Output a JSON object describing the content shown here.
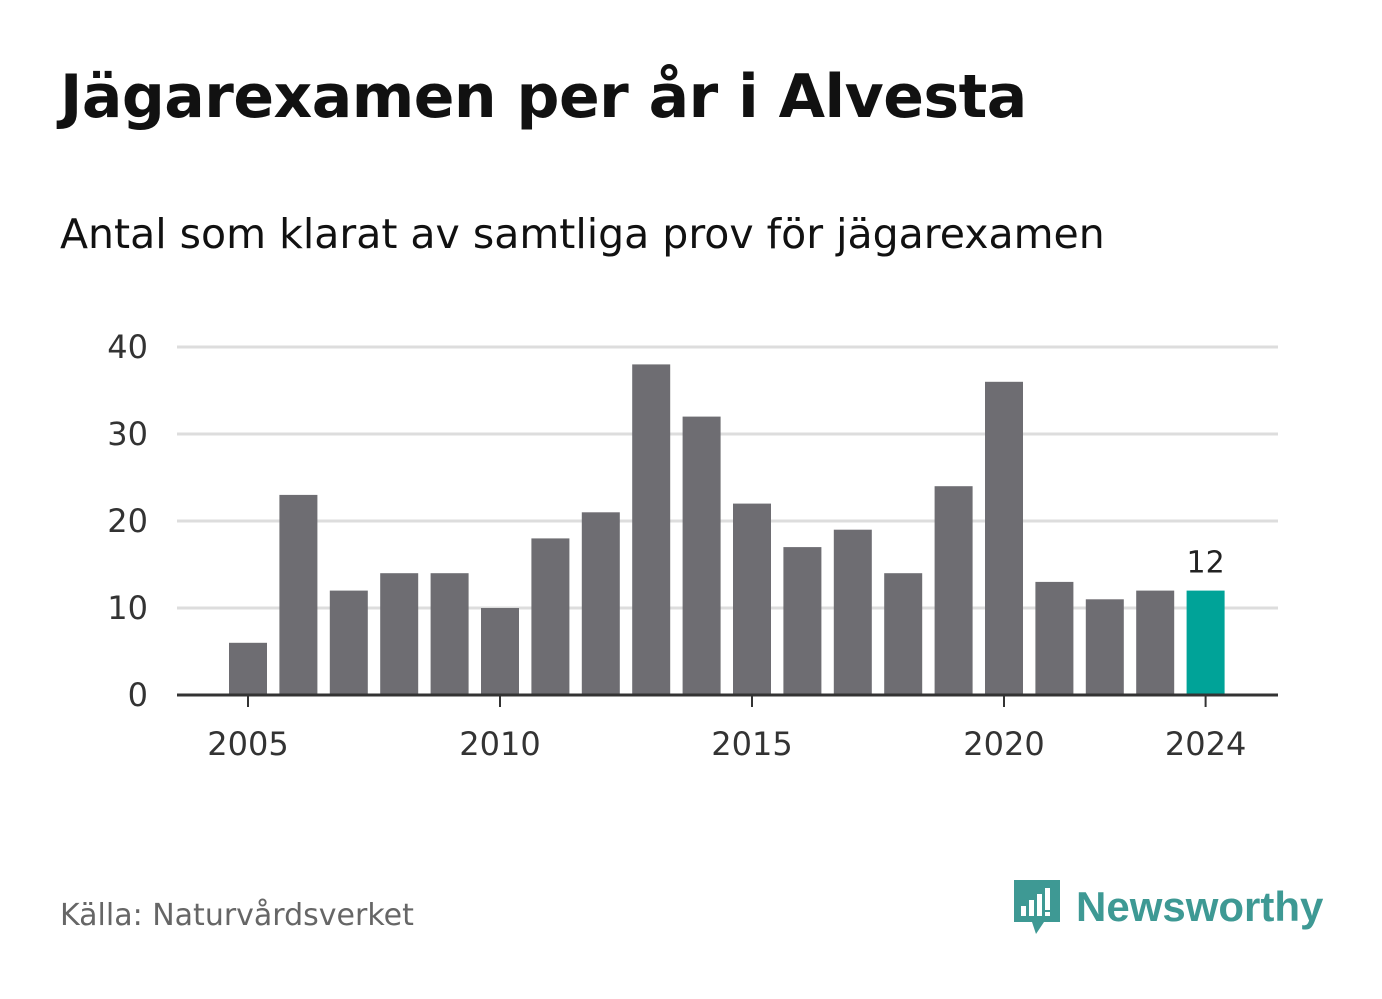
{
  "header": {
    "title": "Jägarexamen per år i Alvesta",
    "subtitle": "Antal som klarat av samtliga prov för jägarexamen"
  },
  "footer": {
    "source": "Källa: Naturvårdsverket",
    "brand": "Newsworthy",
    "brand_icon": "bar-chart-speech-bubble-icon"
  },
  "colors": {
    "bar": "#6e6d72",
    "highlight": "#00a398",
    "grid": "#dddddd",
    "axis": "#333333",
    "brand": "#3e9994"
  },
  "chart_data": {
    "type": "bar",
    "title": "Jägarexamen per år i Alvesta",
    "subtitle": "Antal som klarat av samtliga prov för jägarexamen",
    "xlabel": "",
    "ylabel": "",
    "categories": [
      2005,
      2006,
      2007,
      2008,
      2009,
      2010,
      2011,
      2012,
      2013,
      2014,
      2015,
      2016,
      2017,
      2018,
      2019,
      2020,
      2021,
      2022,
      2023,
      2024
    ],
    "values": [
      6,
      23,
      12,
      14,
      14,
      10,
      18,
      21,
      38,
      32,
      22,
      17,
      19,
      14,
      24,
      36,
      13,
      11,
      12,
      12
    ],
    "ylim": [
      0,
      40
    ],
    "yticks": [
      0,
      10,
      20,
      30,
      40
    ],
    "xticks": [
      2005,
      2010,
      2015,
      2020,
      2024
    ],
    "highlight_category": 2024,
    "data_labels": [
      {
        "category": 2024,
        "text": "12"
      }
    ],
    "grid": "horizontal",
    "legend": "none"
  }
}
